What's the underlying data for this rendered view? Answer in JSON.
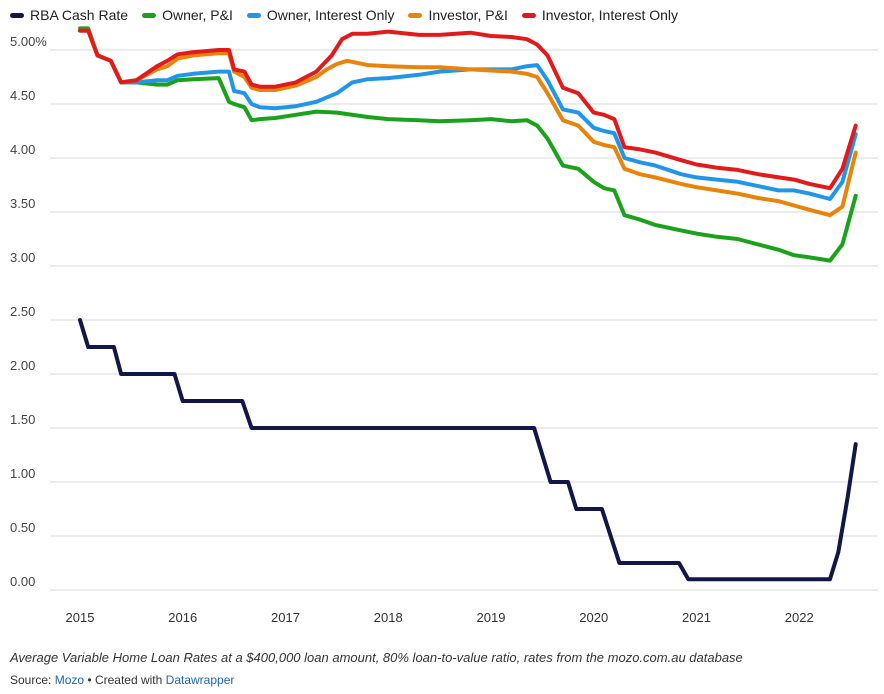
{
  "chart_data": {
    "type": "line",
    "title": "",
    "xlabel": "",
    "ylabel": "",
    "x_ticks": [
      "2015",
      "2016",
      "2017",
      "2018",
      "2019",
      "2020",
      "2021",
      "2022"
    ],
    "y_ticks": [
      "0.00",
      "0.50",
      "1.00",
      "1.50",
      "2.00",
      "2.50",
      "3.00",
      "3.50",
      "4.00",
      "4.50",
      "5.00%"
    ],
    "ylim": [
      0,
      5.0
    ],
    "xlim": [
      2015.0,
      2022.65
    ],
    "grid": true,
    "legend_position": "top-left",
    "series": [
      {
        "name": "RBA Cash Rate",
        "color": "#131747",
        "x": [
          2015.0,
          2015.08,
          2015.33,
          2015.4,
          2015.92,
          2016.0,
          2016.58,
          2016.67,
          2019.42,
          2019.58,
          2019.75,
          2019.83,
          2020.08,
          2020.25,
          2020.83,
          2020.92,
          2022.3,
          2022.38,
          2022.47,
          2022.55
        ],
        "y": [
          2.5,
          2.25,
          2.25,
          2.0,
          2.0,
          1.75,
          1.75,
          1.5,
          1.5,
          1.0,
          1.0,
          0.75,
          0.75,
          0.25,
          0.25,
          0.1,
          0.1,
          0.35,
          0.85,
          1.35
        ]
      },
      {
        "name": "Owner, P&I",
        "color": "#1aa31a",
        "x": [
          2015.0,
          2015.08,
          2015.17,
          2015.3,
          2015.4,
          2015.55,
          2015.75,
          2015.85,
          2015.95,
          2016.1,
          2016.35,
          2016.45,
          2016.5,
          2016.6,
          2016.67,
          2016.75,
          2016.9,
          2017.1,
          2017.3,
          2017.5,
          2017.8,
          2018.0,
          2018.3,
          2018.5,
          2018.8,
          2019.0,
          2019.2,
          2019.35,
          2019.45,
          2019.55,
          2019.7,
          2019.85,
          2020.0,
          2020.1,
          2020.2,
          2020.3,
          2020.45,
          2020.6,
          2020.85,
          2021.0,
          2021.2,
          2021.4,
          2021.6,
          2021.8,
          2021.95,
          2022.1,
          2022.3,
          2022.42,
          2022.55
        ],
        "y": [
          5.2,
          5.2,
          4.95,
          4.9,
          4.7,
          4.7,
          4.68,
          4.68,
          4.72,
          4.73,
          4.74,
          4.52,
          4.5,
          4.47,
          4.35,
          4.36,
          4.37,
          4.4,
          4.43,
          4.42,
          4.38,
          4.36,
          4.35,
          4.34,
          4.35,
          4.36,
          4.34,
          4.35,
          4.3,
          4.18,
          3.93,
          3.9,
          3.78,
          3.72,
          3.7,
          3.47,
          3.43,
          3.38,
          3.33,
          3.3,
          3.27,
          3.25,
          3.2,
          3.15,
          3.1,
          3.08,
          3.05,
          3.2,
          3.65
        ]
      },
      {
        "name": "Owner, Interest Only",
        "color": "#2196e8",
        "x": [
          2015.0,
          2015.08,
          2015.17,
          2015.3,
          2015.4,
          2015.55,
          2015.75,
          2015.85,
          2015.95,
          2016.1,
          2016.35,
          2016.45,
          2016.5,
          2016.6,
          2016.67,
          2016.75,
          2016.9,
          2017.1,
          2017.3,
          2017.5,
          2017.65,
          2017.8,
          2018.0,
          2018.3,
          2018.5,
          2018.8,
          2019.0,
          2019.2,
          2019.35,
          2019.45,
          2019.55,
          2019.7,
          2019.85,
          2020.0,
          2020.1,
          2020.2,
          2020.3,
          2020.45,
          2020.6,
          2020.85,
          2021.0,
          2021.2,
          2021.4,
          2021.6,
          2021.8,
          2021.95,
          2022.1,
          2022.3,
          2022.42,
          2022.55
        ],
        "y": [
          5.18,
          5.18,
          4.95,
          4.9,
          4.7,
          4.7,
          4.72,
          4.72,
          4.76,
          4.78,
          4.8,
          4.8,
          4.62,
          4.6,
          4.5,
          4.47,
          4.46,
          4.48,
          4.52,
          4.6,
          4.7,
          4.73,
          4.74,
          4.77,
          4.8,
          4.82,
          4.82,
          4.82,
          4.85,
          4.86,
          4.72,
          4.45,
          4.42,
          4.28,
          4.25,
          4.23,
          4.0,
          3.96,
          3.93,
          3.85,
          3.82,
          3.8,
          3.78,
          3.74,
          3.7,
          3.7,
          3.67,
          3.62,
          3.78,
          4.22
        ]
      },
      {
        "name": "Investor, P&I",
        "color": "#e8840a",
        "x": [
          2015.0,
          2015.08,
          2015.17,
          2015.3,
          2015.4,
          2015.55,
          2015.75,
          2015.85,
          2015.95,
          2016.1,
          2016.35,
          2016.45,
          2016.5,
          2016.6,
          2016.67,
          2016.75,
          2016.9,
          2017.1,
          2017.3,
          2017.4,
          2017.5,
          2017.6,
          2017.8,
          2018.0,
          2018.3,
          2018.5,
          2018.8,
          2019.0,
          2019.2,
          2019.35,
          2019.45,
          2019.55,
          2019.7,
          2019.85,
          2020.0,
          2020.1,
          2020.2,
          2020.3,
          2020.45,
          2020.6,
          2020.85,
          2021.0,
          2021.2,
          2021.4,
          2021.6,
          2021.8,
          2021.95,
          2022.1,
          2022.3,
          2022.42,
          2022.55
        ],
        "y": [
          5.18,
          5.18,
          4.95,
          4.9,
          4.7,
          4.72,
          4.82,
          4.85,
          4.92,
          4.95,
          4.97,
          4.97,
          4.8,
          4.75,
          4.65,
          4.63,
          4.63,
          4.67,
          4.75,
          4.82,
          4.87,
          4.9,
          4.86,
          4.85,
          4.84,
          4.84,
          4.82,
          4.81,
          4.8,
          4.78,
          4.75,
          4.6,
          4.35,
          4.3,
          4.15,
          4.12,
          4.1,
          3.9,
          3.85,
          3.82,
          3.76,
          3.73,
          3.7,
          3.67,
          3.63,
          3.6,
          3.56,
          3.52,
          3.47,
          3.55,
          4.05
        ]
      },
      {
        "name": "Investor, Interest Only",
        "color": "#e31a1c",
        "x": [
          2015.0,
          2015.08,
          2015.17,
          2015.3,
          2015.4,
          2015.55,
          2015.75,
          2015.85,
          2015.95,
          2016.1,
          2016.35,
          2016.45,
          2016.5,
          2016.6,
          2016.67,
          2016.75,
          2016.9,
          2017.1,
          2017.3,
          2017.45,
          2017.55,
          2017.65,
          2017.8,
          2018.0,
          2018.3,
          2018.5,
          2018.8,
          2019.0,
          2019.2,
          2019.35,
          2019.45,
          2019.55,
          2019.7,
          2019.85,
          2020.0,
          2020.1,
          2020.2,
          2020.3,
          2020.45,
          2020.6,
          2020.85,
          2021.0,
          2021.2,
          2021.4,
          2021.6,
          2021.8,
          2021.95,
          2022.1,
          2022.3,
          2022.42,
          2022.55
        ],
        "y": [
          5.18,
          5.18,
          4.95,
          4.9,
          4.7,
          4.72,
          4.85,
          4.9,
          4.96,
          4.98,
          5.0,
          5.0,
          4.82,
          4.8,
          4.68,
          4.66,
          4.66,
          4.7,
          4.8,
          4.95,
          5.1,
          5.15,
          5.15,
          5.17,
          5.14,
          5.14,
          5.16,
          5.13,
          5.12,
          5.1,
          5.05,
          4.95,
          4.65,
          4.6,
          4.42,
          4.4,
          4.36,
          4.1,
          4.08,
          4.05,
          3.98,
          3.94,
          3.91,
          3.89,
          3.85,
          3.82,
          3.8,
          3.76,
          3.72,
          3.9,
          4.3
        ]
      }
    ]
  },
  "footer": {
    "notes": "Average Variable Home Loan Rates at a $400,000 loan amount, 80% loan-to-value ratio, rates from the mozo.com.au database",
    "source_label": "Source:",
    "source_name": "Mozo",
    "separator": "•",
    "created_with": "Created with",
    "tool_name": "Datawrapper"
  }
}
